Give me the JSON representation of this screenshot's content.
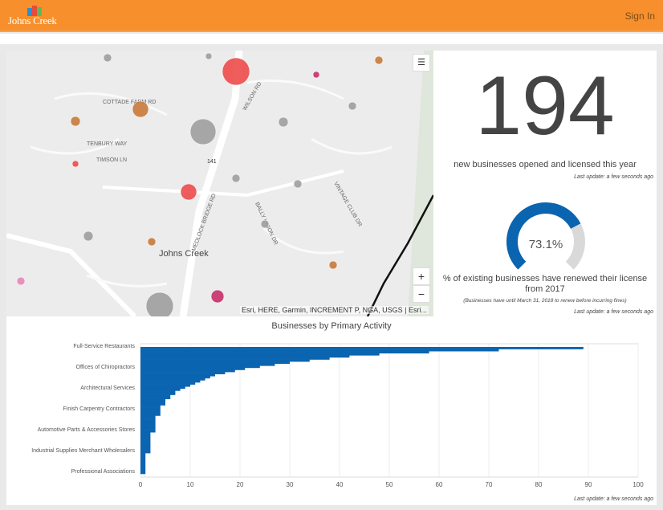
{
  "header": {
    "logo_text": "Johns Creek",
    "sign_in": "Sign In"
  },
  "map": {
    "place_label": "Johns Creek",
    "attribution": "Esri, HERE, Garmin, INCREMENT P, NGA, USGS | Esri...",
    "zoom_in": "+",
    "zoom_out": "−",
    "streets": [
      "COTTADE FARM RD",
      "TENBURY WAY",
      "TIMSON LN",
      "WILSON RD",
      "MEDLOCK BRIDGE RD",
      "BALLY UNION DR",
      "VINTAGE CLUB DR",
      "141",
      "Johns Creek"
    ],
    "colors": {
      "high": "#ee4b4b",
      "mid": "#c97a3a",
      "low": "#9e9e9e",
      "accent": "#c8306a"
    }
  },
  "indicator": {
    "value": "194",
    "label": "new businesses opened and licensed this year",
    "last_update": "Last update: a few seconds ago"
  },
  "gauge": {
    "value": 73.1,
    "display": "73.1%",
    "label": "% of existing businesses have renewed their license from 2017",
    "note": "(Businesses have until March 31, 2018 to renew before incurring fines)",
    "last_update": "Last update: a few seconds ago",
    "color": "#0a64b0",
    "track": "#d9d9d9"
  },
  "chart_data": {
    "type": "bar",
    "orientation": "horizontal",
    "title": "Businesses by Primary Activity",
    "xlim": [
      0,
      100
    ],
    "xticks": [
      0,
      10,
      20,
      30,
      40,
      50,
      60,
      70,
      80,
      90,
      100
    ],
    "labeled_categories": [
      "Full-Service Restaurants",
      "Offices of Chiropractors",
      "Architectural Services",
      "Finish Carpentry Contractors",
      "Automotive Parts & Accessories Stores",
      "Industrial Supplies Merchant Wholesalers",
      "Professional Associations"
    ],
    "values": [
      89,
      72,
      58,
      48,
      42,
      38,
      34,
      30,
      27,
      24,
      21,
      19,
      17,
      15,
      14,
      13,
      12,
      11,
      10,
      9,
      8,
      7,
      7,
      6,
      6,
      5,
      5,
      5,
      4,
      4,
      4,
      4,
      4,
      3,
      3,
      3,
      3,
      3,
      3,
      3,
      3,
      2,
      2,
      2,
      2,
      2,
      2,
      2,
      2,
      2,
      2,
      1,
      1,
      1,
      1,
      1,
      1,
      1,
      1,
      1,
      1
    ],
    "color": "#0a64b0",
    "last_update": "Last update: a few seconds ago"
  }
}
